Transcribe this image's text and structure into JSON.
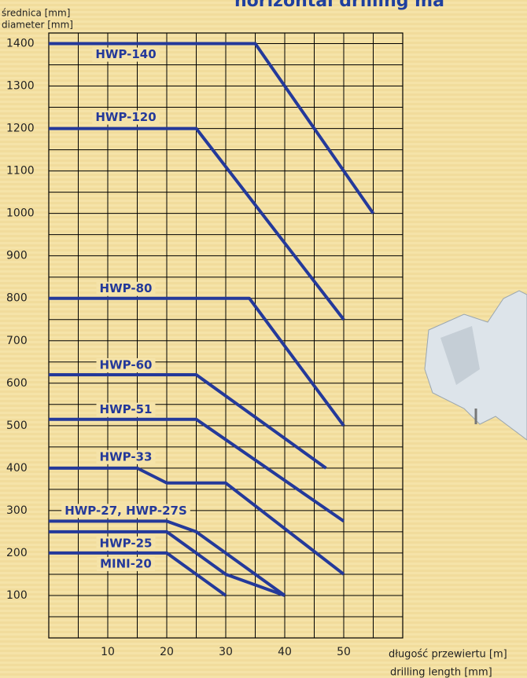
{
  "chart_data": {
    "type": "line",
    "title": "horizontal drilling ma",
    "y_label_lines": [
      "średnica [mm]",
      "diameter [mm]"
    ],
    "x_label_lines": [
      "długość przewiertu [m]",
      "drilling length [mm]"
    ],
    "xlim": [
      0,
      60
    ],
    "xticks": [
      10,
      20,
      30,
      40,
      50
    ],
    "ylim": [
      0,
      1425
    ],
    "yticks": [
      100,
      200,
      300,
      400,
      500,
      600,
      700,
      800,
      900,
      1000,
      1100,
      1200,
      1300,
      1400
    ],
    "grid": true,
    "series": [
      {
        "name": "HWP-140",
        "color": "#24399a",
        "x": [
          0,
          35,
          55
        ],
        "values": [
          1400,
          1400,
          1000
        ]
      },
      {
        "name": "HWP-120",
        "color": "#24399a",
        "x": [
          0,
          25,
          50
        ],
        "values": [
          1200,
          1200,
          750
        ]
      },
      {
        "name": "HWP-80",
        "color": "#24399a",
        "x": [
          0,
          34,
          50
        ],
        "values": [
          800,
          800,
          500
        ]
      },
      {
        "name": "HWP-60",
        "color": "#24399a",
        "x": [
          0,
          25,
          47
        ],
        "values": [
          620,
          620,
          400
        ]
      },
      {
        "name": "HWP-51",
        "color": "#24399a",
        "x": [
          0,
          25,
          50
        ],
        "values": [
          515,
          515,
          275
        ]
      },
      {
        "name": "HWP-33",
        "color": "#24399a",
        "x": [
          0,
          15,
          20,
          30,
          50
        ],
        "values": [
          400,
          400,
          365,
          365,
          150
        ]
      },
      {
        "name": "HWP-27,  HWP-27S",
        "color": "#24399a",
        "x": [
          0,
          20,
          25,
          40
        ],
        "values": [
          275,
          275,
          250,
          100
        ]
      },
      {
        "name": "HWP-25",
        "color": "#24399a",
        "x": [
          0,
          20,
          30,
          40
        ],
        "values": [
          250,
          250,
          150,
          100
        ]
      },
      {
        "name": "MINI-20",
        "color": "#24399a",
        "x": [
          0,
          20,
          30
        ],
        "values": [
          200,
          200,
          100
        ]
      }
    ]
  }
}
